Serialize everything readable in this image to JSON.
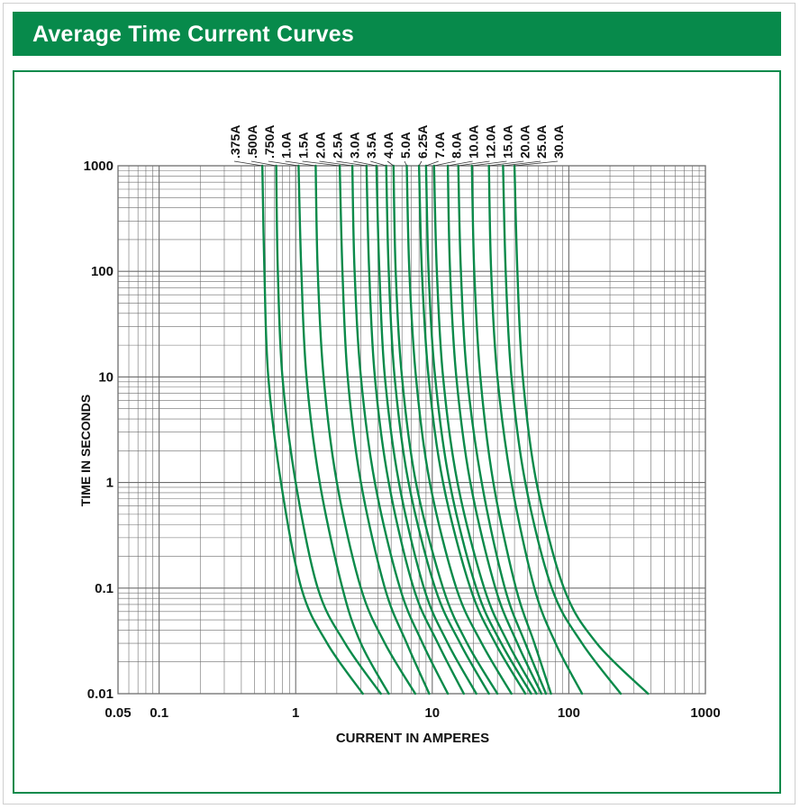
{
  "header": {
    "title": "Average Time Current Curves"
  },
  "colors": {
    "accent": "#078a4b",
    "curve": "#0b8a4a",
    "grid": "#6d6d6d"
  },
  "chart_data": {
    "type": "line",
    "title": "Average Time Current Curves",
    "xlabel": "CURRENT IN AMPERES",
    "ylabel": "TIME IN SECONDS",
    "xscale": "log",
    "yscale": "log",
    "xlim": [
      0.05,
      1000
    ],
    "ylim": [
      0.01,
      1000
    ],
    "grid": true,
    "x_ticks": [
      {
        "value": 0.05,
        "label": "0.05"
      },
      {
        "value": 0.1,
        "label": "0.1"
      },
      {
        "value": 1,
        "label": "1"
      },
      {
        "value": 10,
        "label": "10"
      },
      {
        "value": 100,
        "label": "100"
      },
      {
        "value": 1000,
        "label": "1000"
      }
    ],
    "y_ticks": [
      {
        "value": 0.01,
        "label": "0.01"
      },
      {
        "value": 0.1,
        "label": "0.1"
      },
      {
        "value": 1,
        "label": "1"
      },
      {
        "value": 10,
        "label": "10"
      },
      {
        "value": 100,
        "label": "100"
      },
      {
        "value": 1000,
        "label": "1000"
      }
    ],
    "series": [
      {
        "name": ".375A",
        "points": [
          [
            0.57,
            1000
          ],
          [
            0.59,
            100
          ],
          [
            0.63,
            10
          ],
          [
            0.78,
            1
          ],
          [
            1.1,
            0.1
          ],
          [
            1.7,
            0.03
          ],
          [
            3.1,
            0.01
          ]
        ]
      },
      {
        "name": ".500A",
        "points": [
          [
            0.72,
            1000
          ],
          [
            0.74,
            100
          ],
          [
            0.8,
            10
          ],
          [
            1.0,
            1
          ],
          [
            1.45,
            0.1
          ],
          [
            2.3,
            0.03
          ],
          [
            4.2,
            0.01
          ]
        ]
      },
      {
        "name": ".750A",
        "points": [
          [
            1.05,
            1000
          ],
          [
            1.1,
            100
          ],
          [
            1.2,
            10
          ],
          [
            1.5,
            1
          ],
          [
            2.2,
            0.1
          ],
          [
            3.0,
            0.03
          ],
          [
            4.8,
            0.01
          ]
        ]
      },
      {
        "name": "1.0A",
        "points": [
          [
            1.4,
            1000
          ],
          [
            1.45,
            100
          ],
          [
            1.6,
            10
          ],
          [
            2.0,
            1
          ],
          [
            3.0,
            0.1
          ],
          [
            4.5,
            0.03
          ],
          [
            7.5,
            0.01
          ]
        ]
      },
      {
        "name": "1.5A",
        "points": [
          [
            2.1,
            1000
          ],
          [
            2.2,
            100
          ],
          [
            2.4,
            10
          ],
          [
            3.0,
            1
          ],
          [
            4.5,
            0.1
          ],
          [
            6.5,
            0.03
          ],
          [
            9.5,
            0.01
          ]
        ]
      },
      {
        "name": "2.0A",
        "points": [
          [
            2.6,
            1000
          ],
          [
            2.7,
            100
          ],
          [
            3.0,
            10
          ],
          [
            3.8,
            1
          ],
          [
            5.8,
            0.1
          ],
          [
            8.5,
            0.03
          ],
          [
            13,
            0.01
          ]
        ]
      },
      {
        "name": "2.5A",
        "points": [
          [
            3.3,
            1000
          ],
          [
            3.45,
            100
          ],
          [
            3.8,
            10
          ],
          [
            4.8,
            1
          ],
          [
            7.3,
            0.1
          ],
          [
            11,
            0.03
          ],
          [
            17,
            0.01
          ]
        ]
      },
      {
        "name": "3.0A",
        "points": [
          [
            3.9,
            1000
          ],
          [
            4.1,
            100
          ],
          [
            4.5,
            10
          ],
          [
            5.7,
            1
          ],
          [
            8.7,
            0.1
          ],
          [
            13,
            0.03
          ],
          [
            21,
            0.01
          ]
        ]
      },
      {
        "name": "3.5A",
        "points": [
          [
            4.6,
            1000
          ],
          [
            4.8,
            100
          ],
          [
            5.3,
            10
          ],
          [
            6.7,
            1
          ],
          [
            10.5,
            0.1
          ],
          [
            16,
            0.03
          ],
          [
            26,
            0.01
          ]
        ]
      },
      {
        "name": "4.0A",
        "points": [
          [
            5.2,
            1000
          ],
          [
            5.4,
            100
          ],
          [
            6.0,
            10
          ],
          [
            7.6,
            1
          ],
          [
            12,
            0.1
          ],
          [
            18,
            0.03
          ],
          [
            30,
            0.01
          ]
        ]
      },
      {
        "name": "5.0A",
        "points": [
          [
            6.5,
            1000
          ],
          [
            6.8,
            100
          ],
          [
            7.6,
            10
          ],
          [
            9.6,
            1
          ],
          [
            15,
            0.1
          ],
          [
            23,
            0.03
          ],
          [
            38,
            0.01
          ]
        ]
      },
      {
        "name": "6.25A",
        "points": [
          [
            8.0,
            1000
          ],
          [
            8.4,
            100
          ],
          [
            9.4,
            10
          ],
          [
            12,
            1
          ],
          [
            19,
            0.1
          ],
          [
            29,
            0.03
          ],
          [
            48,
            0.01
          ]
        ]
      },
      {
        "name": "7.0A",
        "points": [
          [
            9.0,
            1000
          ],
          [
            9.4,
            100
          ],
          [
            10.5,
            10
          ],
          [
            13.4,
            1
          ],
          [
            21,
            0.1
          ],
          [
            32,
            0.03
          ],
          [
            53,
            0.01
          ]
        ]
      },
      {
        "name": "8.0A",
        "points": [
          [
            10.3,
            1000
          ],
          [
            10.8,
            100
          ],
          [
            12,
            10
          ],
          [
            15.3,
            1
          ],
          [
            24,
            0.1
          ],
          [
            36,
            0.03
          ],
          [
            58,
            0.01
          ]
        ]
      },
      {
        "name": "10.0A",
        "points": [
          [
            13,
            1000
          ],
          [
            13.5,
            100
          ],
          [
            15,
            10
          ],
          [
            19,
            1
          ],
          [
            29,
            0.1
          ],
          [
            42,
            0.03
          ],
          [
            63,
            0.01
          ]
        ]
      },
      {
        "name": "12.0A",
        "points": [
          [
            15.5,
            1000
          ],
          [
            16.2,
            100
          ],
          [
            18,
            10
          ],
          [
            23,
            1
          ],
          [
            34,
            0.1
          ],
          [
            48,
            0.03
          ],
          [
            68,
            0.01
          ]
        ]
      },
      {
        "name": "15.0A",
        "points": [
          [
            19.5,
            1000
          ],
          [
            20.3,
            100
          ],
          [
            22.5,
            10
          ],
          [
            28,
            1
          ],
          [
            41,
            0.1
          ],
          [
            56,
            0.03
          ],
          [
            74,
            0.01
          ]
        ]
      },
      {
        "name": "20.0A",
        "points": [
          [
            26,
            1000
          ],
          [
            27,
            100
          ],
          [
            30,
            10
          ],
          [
            38,
            1
          ],
          [
            56,
            0.1
          ],
          [
            80,
            0.03
          ],
          [
            125,
            0.01
          ]
        ]
      },
      {
        "name": "25.0A",
        "points": [
          [
            33,
            1000
          ],
          [
            34.5,
            100
          ],
          [
            38,
            10
          ],
          [
            48,
            1
          ],
          [
            75,
            0.1
          ],
          [
            125,
            0.03
          ],
          [
            240,
            0.01
          ]
        ]
      },
      {
        "name": "30.0A",
        "points": [
          [
            40,
            1000
          ],
          [
            42,
            100
          ],
          [
            46,
            10
          ],
          [
            58,
            1
          ],
          [
            92,
            0.1
          ],
          [
            160,
            0.03
          ],
          [
            380,
            0.01
          ]
        ]
      }
    ]
  }
}
